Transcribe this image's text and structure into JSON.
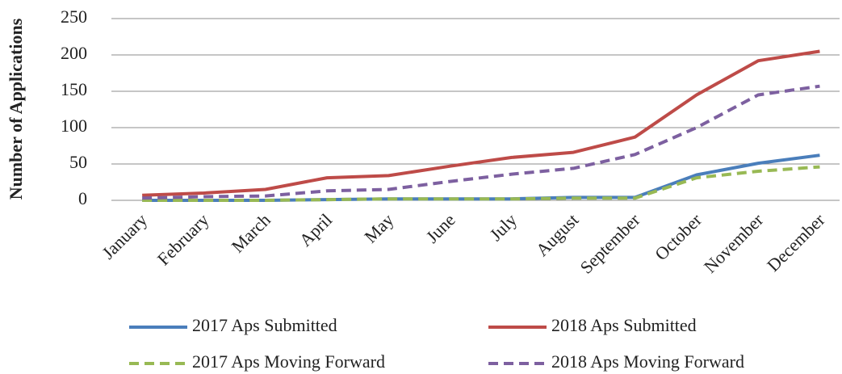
{
  "chart_data": {
    "type": "line",
    "y_label": "Number of Applications",
    "categories": [
      "January",
      "February",
      "March",
      "April",
      "May",
      "June",
      "July",
      "August",
      "September",
      "October",
      "November",
      "December"
    ],
    "series": [
      {
        "name": "2017 Aps Submitted",
        "color": "#4a7ebb",
        "dashed": false,
        "values": [
          0,
          0,
          0,
          1,
          2,
          2,
          2,
          4,
          4,
          35,
          51,
          62
        ]
      },
      {
        "name": "2018 Aps Submitted",
        "color": "#be4b48",
        "dashed": false,
        "values": [
          7,
          10,
          15,
          31,
          34,
          47,
          59,
          66,
          87,
          145,
          192,
          205
        ]
      },
      {
        "name": "2017 Aps Moving Forward",
        "color": "#98b954",
        "dashed": true,
        "values": [
          0,
          0,
          0,
          1,
          2,
          2,
          2,
          3,
          3,
          31,
          40,
          46
        ]
      },
      {
        "name": "2018 Aps Moving Forward",
        "color": "#7d60a0",
        "dashed": true,
        "values": [
          3,
          5,
          6,
          13,
          15,
          26,
          36,
          44,
          63,
          100,
          145,
          157
        ]
      }
    ],
    "ylim": [
      0,
      250
    ],
    "yticks": [
      0,
      50,
      100,
      150,
      200,
      250
    ],
    "grid": true,
    "legend": "bottom"
  }
}
